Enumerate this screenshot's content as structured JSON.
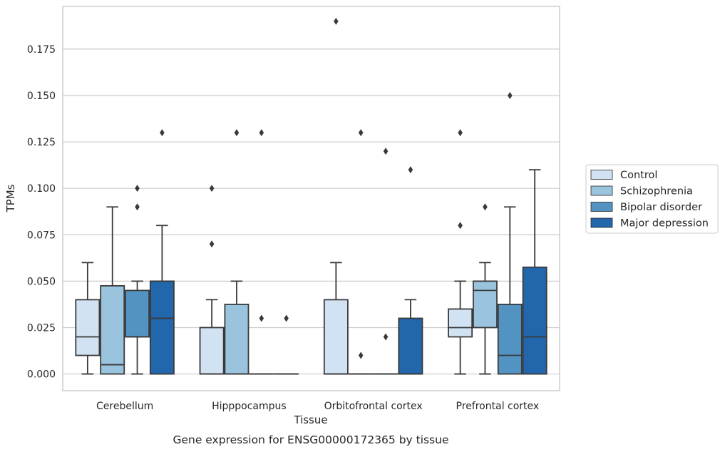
{
  "chart_data": {
    "type": "boxplot",
    "caption": "Gene expression for ENSG00000172365 by tissue",
    "xlabel": "Tissue",
    "ylabel": "TPMs",
    "ylim": [
      -0.009,
      0.198
    ],
    "yticks": [
      0.0,
      0.025,
      0.05,
      0.075,
      0.1,
      0.125,
      0.15,
      0.175
    ],
    "ytick_labels": [
      "0.000",
      "0.025",
      "0.050",
      "0.075",
      "0.100",
      "0.125",
      "0.150",
      "0.175"
    ],
    "grid": true,
    "legend_placement": "right",
    "categories": [
      "Cerebellum",
      "Hipppocampus",
      "Orbitofrontal cortex",
      "Prefrontal cortex"
    ],
    "series": [
      {
        "name": "Control",
        "color": "#d1e2f2",
        "boxes": [
          {
            "whisker_low": 0.0,
            "q1": 0.01,
            "median": 0.02,
            "q3": 0.04,
            "whisker_high": 0.06,
            "outliers": []
          },
          {
            "whisker_low": 0.0,
            "q1": 0.0,
            "median": 0.0,
            "q3": 0.025,
            "whisker_high": 0.04,
            "outliers": [
              0.07,
              0.1
            ]
          },
          {
            "whisker_low": 0.0,
            "q1": 0.0,
            "median": 0.0,
            "q3": 0.04,
            "whisker_high": 0.06,
            "outliers": [
              0.19
            ]
          },
          {
            "whisker_low": 0.0,
            "q1": 0.02,
            "median": 0.025,
            "q3": 0.035,
            "whisker_high": 0.05,
            "outliers": [
              0.08,
              0.13
            ]
          }
        ]
      },
      {
        "name": "Schizophrenia",
        "color": "#9ac3de",
        "boxes": [
          {
            "whisker_low": 0.0,
            "q1": 0.0,
            "median": 0.005,
            "q3": 0.0475,
            "whisker_high": 0.09,
            "outliers": []
          },
          {
            "whisker_low": 0.0,
            "q1": 0.0,
            "median": 0.0,
            "q3": 0.0375,
            "whisker_high": 0.05,
            "outliers": [
              0.13
            ]
          },
          {
            "whisker_low": 0.0,
            "q1": 0.0,
            "median": 0.0,
            "q3": 0.0,
            "whisker_high": 0.0,
            "outliers": [
              0.01,
              0.13
            ]
          },
          {
            "whisker_low": 0.0,
            "q1": 0.025,
            "median": 0.045,
            "q3": 0.05,
            "whisker_high": 0.06,
            "outliers": [
              0.09
            ]
          }
        ]
      },
      {
        "name": "Bipolar disorder",
        "color": "#5293c2",
        "boxes": [
          {
            "whisker_low": 0.0,
            "q1": 0.02,
            "median": 0.02,
            "q3": 0.045,
            "whisker_high": 0.05,
            "outliers": [
              0.09,
              0.1
            ]
          },
          {
            "whisker_low": 0.0,
            "q1": 0.0,
            "median": 0.0,
            "q3": 0.0,
            "whisker_high": 0.0,
            "outliers": [
              0.03,
              0.13
            ]
          },
          {
            "whisker_low": 0.0,
            "q1": 0.0,
            "median": 0.0,
            "q3": 0.0,
            "whisker_high": 0.0,
            "outliers": [
              0.02,
              0.12
            ]
          },
          {
            "whisker_low": 0.0,
            "q1": 0.0,
            "median": 0.01,
            "q3": 0.0375,
            "whisker_high": 0.09,
            "outliers": [
              0.15
            ]
          }
        ]
      },
      {
        "name": "Major depression",
        "color": "#2266ab",
        "boxes": [
          {
            "whisker_low": 0.0,
            "q1": 0.0,
            "median": 0.03,
            "q3": 0.05,
            "whisker_high": 0.08,
            "outliers": [
              0.13
            ]
          },
          {
            "whisker_low": 0.0,
            "q1": 0.0,
            "median": 0.0,
            "q3": 0.0,
            "whisker_high": 0.0,
            "outliers": [
              0.03
            ]
          },
          {
            "whisker_low": 0.0,
            "q1": 0.0,
            "median": 0.0,
            "q3": 0.03,
            "whisker_high": 0.04,
            "outliers": [
              0.11
            ]
          },
          {
            "whisker_low": 0.0,
            "q1": 0.0,
            "median": 0.02,
            "q3": 0.0575,
            "whisker_high": 0.11,
            "outliers": []
          }
        ]
      }
    ],
    "style": {
      "grid_color": "#cccccc",
      "spine_color": "#cccccc",
      "line_color": "#3a3a3a",
      "outlier_color": "#3a3a3a"
    }
  }
}
